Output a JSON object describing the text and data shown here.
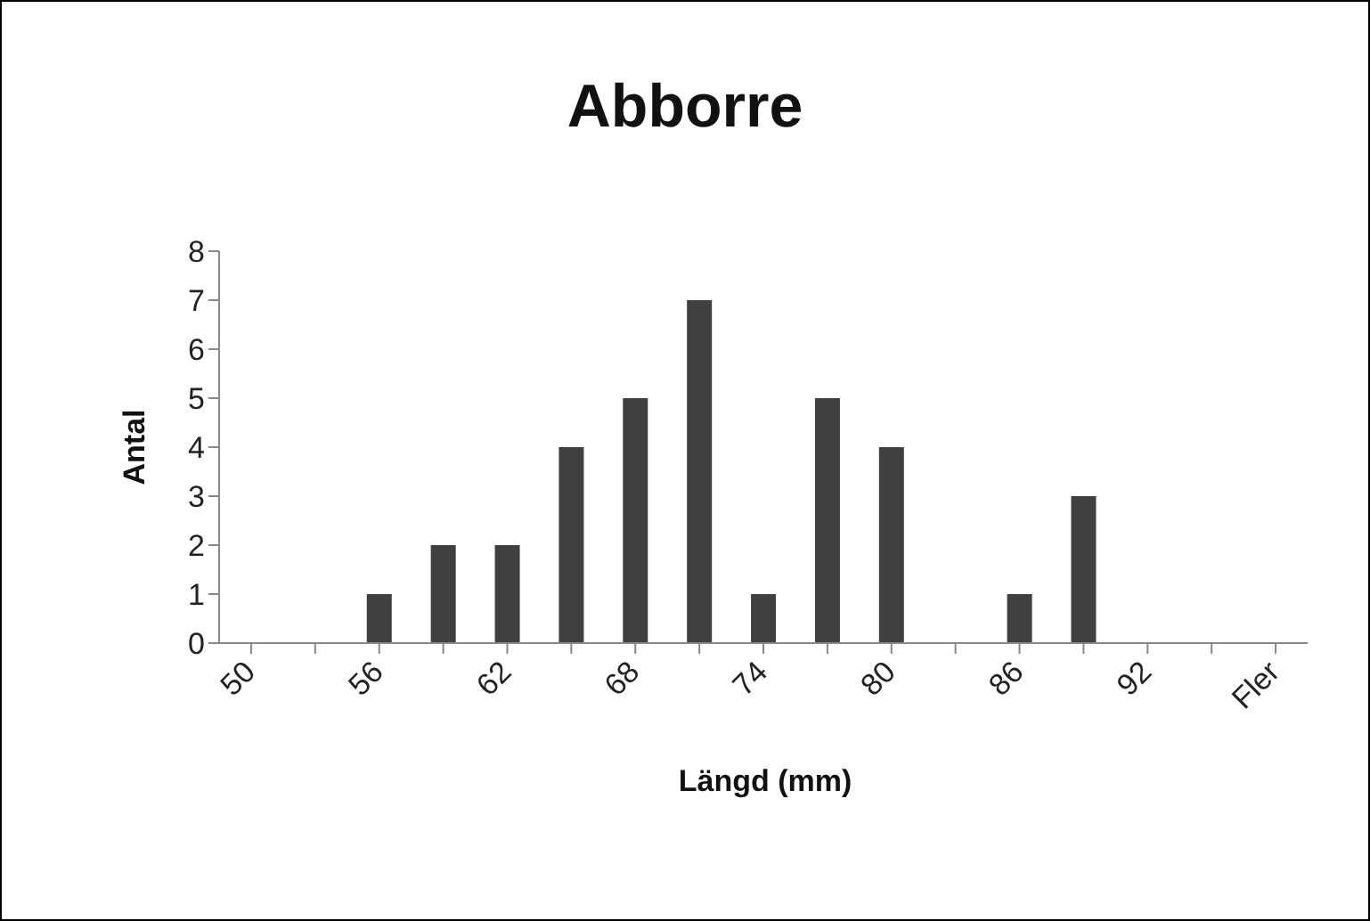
{
  "chart_data": {
    "type": "bar",
    "title": "Abborre",
    "xlabel": "Längd (mm)",
    "ylabel": "Antal",
    "categories": [
      "50",
      null,
      "56",
      null,
      "62",
      null,
      "68",
      null,
      "74",
      null,
      "80",
      null,
      "86",
      null,
      "92",
      null,
      "Fler"
    ],
    "values": [
      0,
      0,
      1,
      2,
      2,
      4,
      5,
      7,
      1,
      5,
      4,
      0,
      1,
      3,
      0,
      0,
      0
    ],
    "color": "#404040",
    "ylim": [
      0,
      8
    ],
    "yticks": [
      0,
      1,
      2,
      3,
      4,
      5,
      6,
      7,
      8
    ],
    "grid": false
  }
}
